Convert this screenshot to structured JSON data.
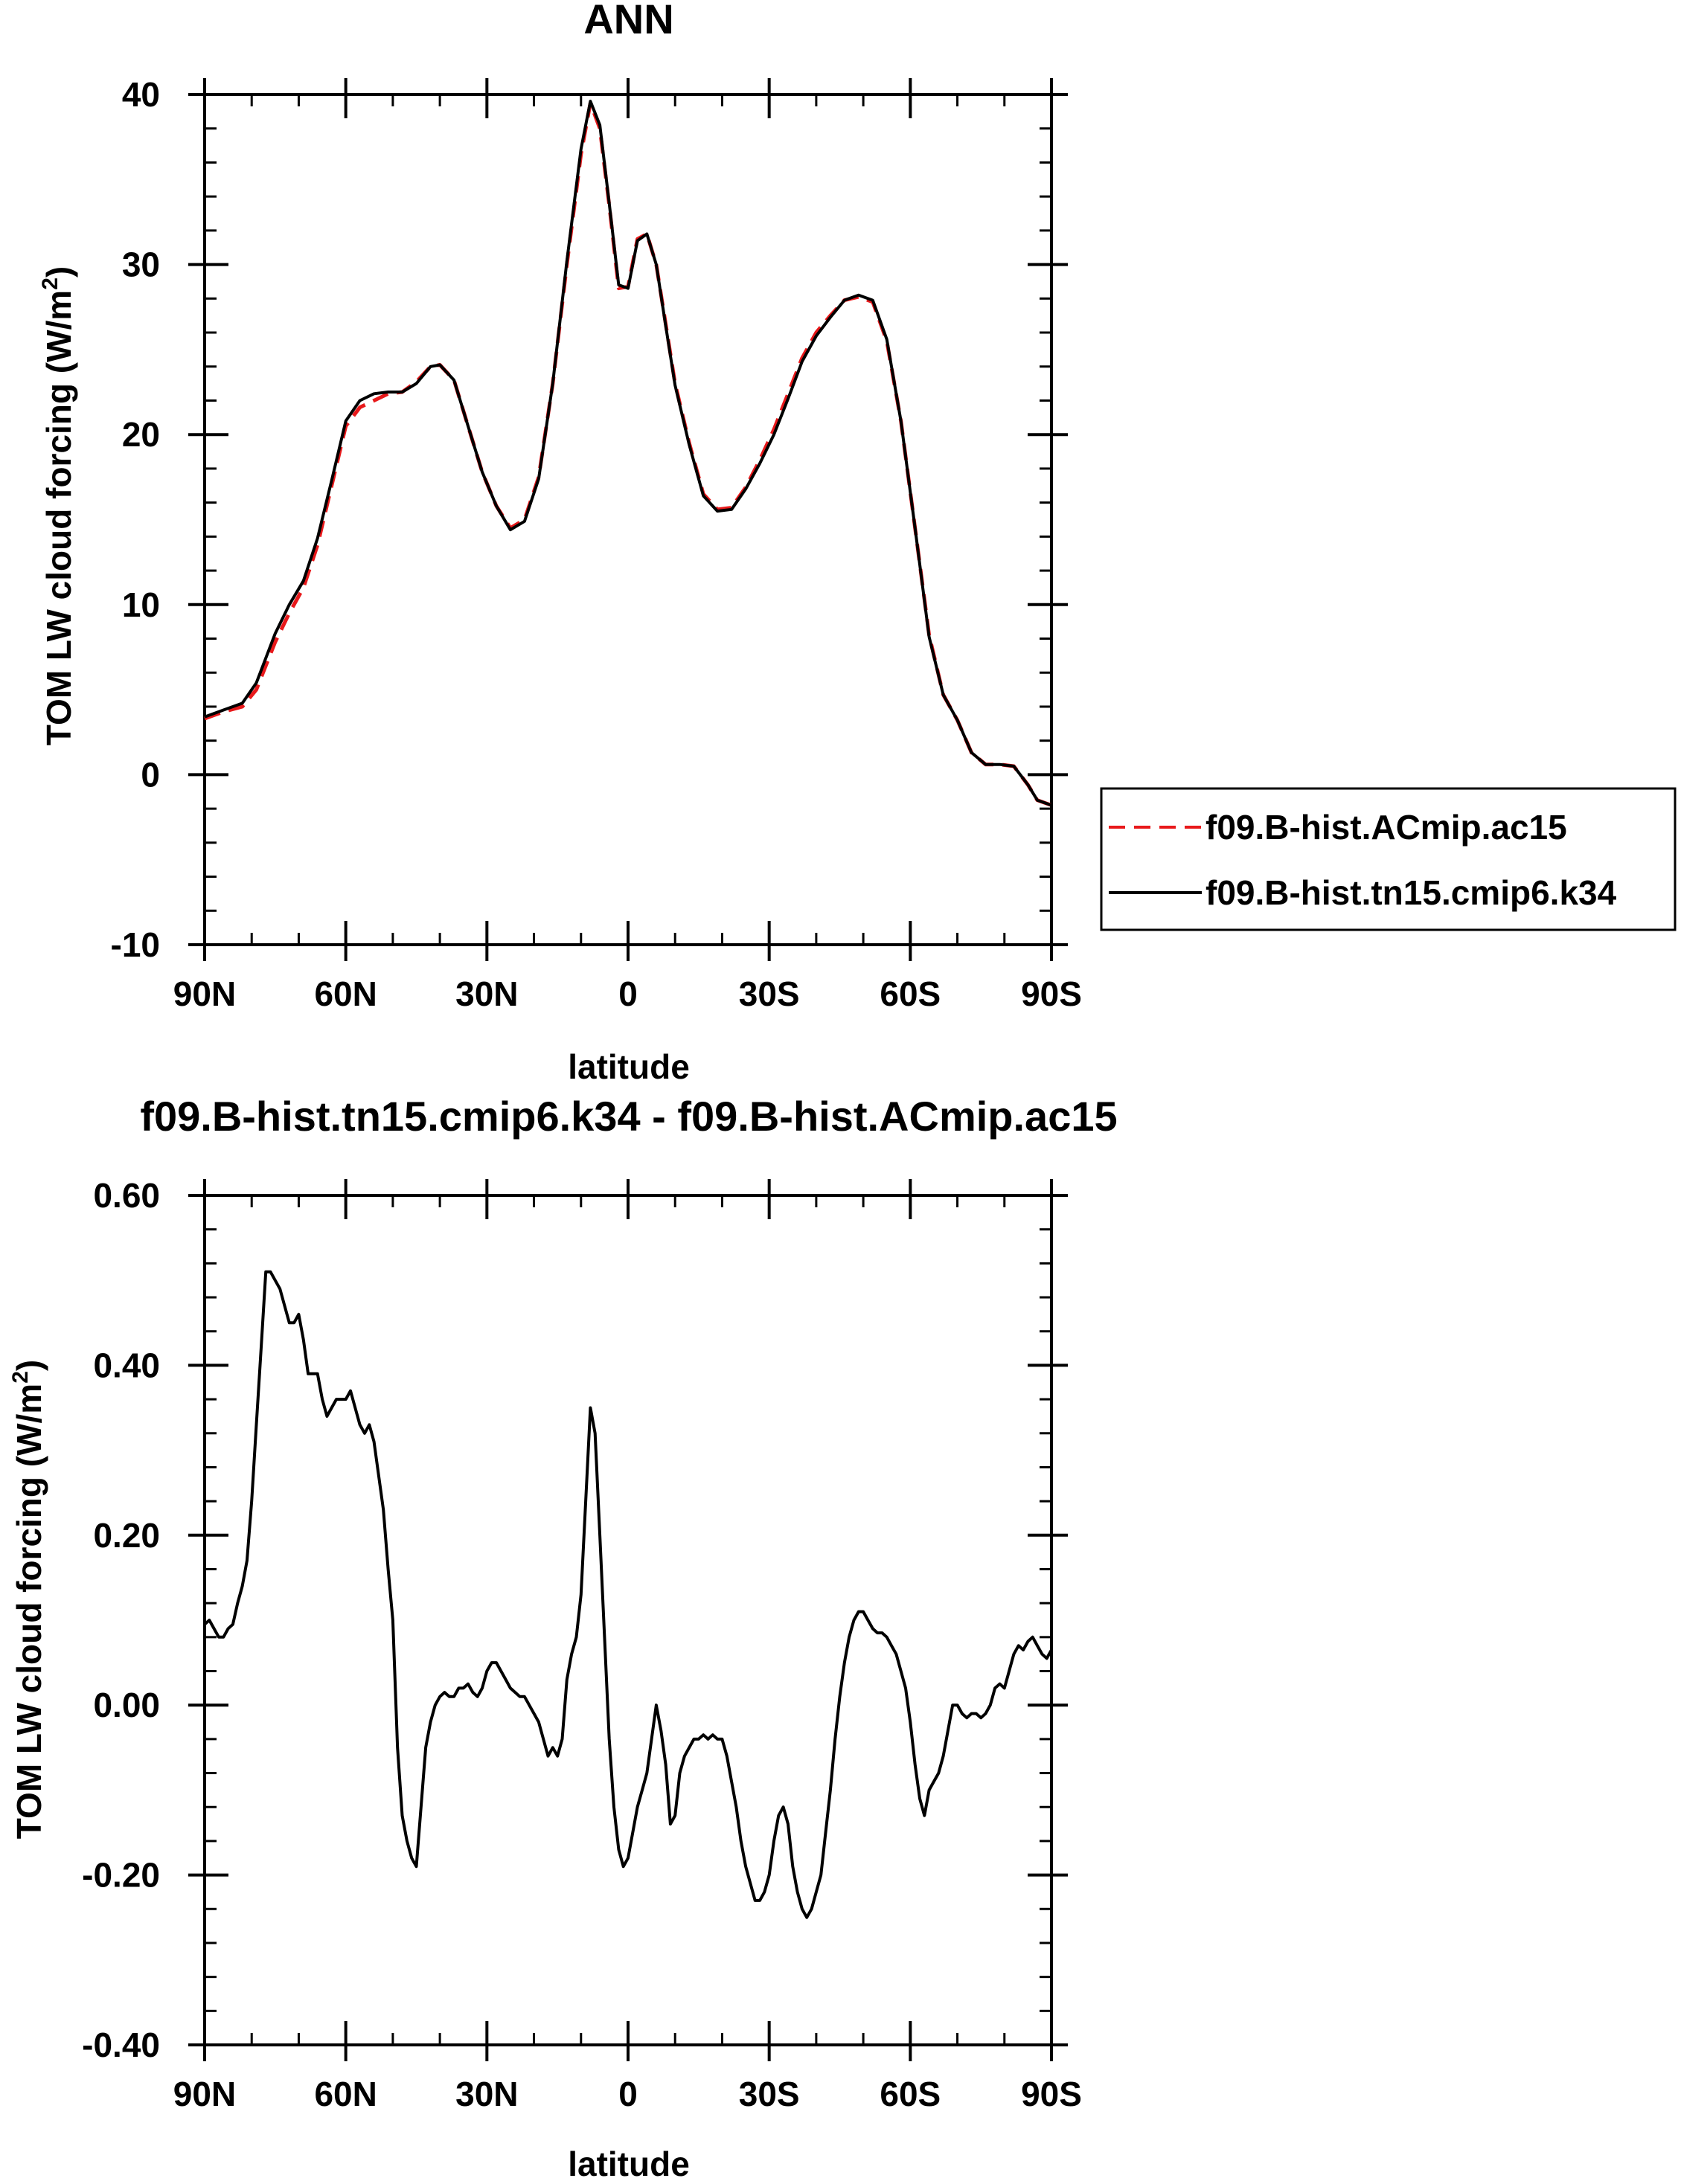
{
  "chart_data": [
    {
      "type": "line",
      "title": "ANN",
      "xlabel": "latitude",
      "ylabel_main": "TOM LW cloud forcing (W/m",
      "ylabel_sup": "2",
      "ylabel_close": ")",
      "xlim": [
        90,
        -90
      ],
      "ylim": [
        -10,
        40
      ],
      "x_ticks": [
        90,
        60,
        30,
        0,
        -30,
        -60,
        -90
      ],
      "x_tick_labels": [
        "90N",
        "60N",
        "30N",
        "0",
        "30S",
        "60S",
        "90S"
      ],
      "y_ticks": [
        -10,
        0,
        10,
        20,
        30,
        40
      ],
      "y_tick_labels": [
        "-10",
        "0",
        "10",
        "20",
        "30",
        "40"
      ],
      "grid": false,
      "legend_position": "right",
      "series": [
        {
          "name": "f09.B-hist.ACmip.ac15",
          "color": "#e8191b",
          "style": "dashed",
          "x": [
            90,
            86,
            82,
            79,
            75,
            72,
            69,
            66,
            63,
            60,
            57,
            54,
            51,
            48,
            45,
            42,
            40,
            37,
            34,
            31,
            28,
            25,
            22,
            19,
            16,
            13,
            10,
            8,
            6,
            4,
            2,
            0,
            -2,
            -4,
            -6,
            -8,
            -10,
            -13,
            -16,
            -19,
            -22,
            -25,
            -28,
            -31,
            -34,
            -37,
            -40,
            -43,
            -46,
            -49,
            -52,
            -55,
            -58,
            -61,
            -64,
            -67,
            -70,
            -73,
            -76,
            -79,
            -82,
            -85,
            -87,
            -90
          ],
          "y": [
            3.3,
            3.7,
            4.0,
            5.0,
            7.8,
            9.5,
            11.0,
            13.5,
            17.0,
            20.5,
            21.6,
            22.0,
            22.4,
            22.5,
            23.1,
            24.0,
            24.1,
            23.2,
            20.5,
            17.8,
            15.8,
            14.5,
            15.0,
            17.5,
            23.0,
            30.0,
            36.5,
            39.5,
            38.0,
            33.5,
            28.6,
            28.7,
            31.5,
            31.8,
            30.0,
            26.5,
            23.0,
            19.5,
            16.5,
            15.6,
            15.7,
            16.9,
            18.5,
            20.3,
            22.4,
            24.5,
            26.0,
            27.0,
            27.9,
            28.1,
            27.8,
            25.5,
            20.8,
            14.5,
            8.2,
            4.7,
            3.2,
            1.3,
            0.6,
            0.6,
            0.5,
            -0.6,
            -1.5,
            -1.8
          ]
        },
        {
          "name": "f09.B-hist.tn15.cmip6.k34",
          "color": "#000000",
          "style": "solid",
          "x": [
            90,
            86,
            82,
            79,
            75,
            72,
            69,
            66,
            63,
            60,
            57,
            54,
            51,
            48,
            45,
            42,
            40,
            37,
            34,
            31,
            28,
            25,
            22,
            19,
            16,
            13,
            10,
            8,
            6,
            4,
            2,
            0,
            -2,
            -4,
            -6,
            -8,
            -10,
            -13,
            -16,
            -19,
            -22,
            -25,
            -28,
            -31,
            -34,
            -37,
            -40,
            -43,
            -46,
            -49,
            -52,
            -55,
            -58,
            -61,
            -64,
            -67,
            -70,
            -73,
            -76,
            -79,
            -82,
            -85,
            -87,
            -90
          ],
          "y": [
            3.4,
            3.8,
            4.2,
            5.4,
            8.3,
            10.0,
            11.4,
            13.9,
            17.3,
            20.8,
            22.0,
            22.4,
            22.5,
            22.5,
            23.0,
            24.0,
            24.1,
            23.2,
            20.5,
            17.8,
            15.8,
            14.4,
            14.9,
            17.4,
            23.0,
            30.2,
            36.8,
            39.6,
            38.2,
            33.6,
            28.8,
            28.6,
            31.4,
            31.8,
            30.0,
            26.4,
            22.9,
            19.4,
            16.4,
            15.5,
            15.6,
            16.8,
            18.3,
            20.0,
            22.1,
            24.3,
            25.8,
            26.9,
            27.9,
            28.2,
            27.9,
            25.6,
            20.8,
            14.5,
            8.1,
            4.7,
            3.2,
            1.3,
            0.6,
            0.6,
            0.5,
            -0.6,
            -1.5,
            -1.8
          ]
        }
      ]
    },
    {
      "type": "line",
      "title": "f09.B-hist.tn15.cmip6.k34 - f09.B-hist.ACmip.ac15",
      "xlabel": "latitude",
      "ylabel_main": "TOM LW cloud forcing (W/m",
      "ylabel_sup": "2",
      "ylabel_close": ")",
      "xlim": [
        90,
        -90
      ],
      "ylim": [
        -0.4,
        0.6
      ],
      "x_ticks": [
        90,
        60,
        30,
        0,
        -30,
        -60,
        -90
      ],
      "x_tick_labels": [
        "90N",
        "60N",
        "30N",
        "0",
        "30S",
        "60S",
        "90S"
      ],
      "y_ticks": [
        -0.4,
        -0.2,
        0.0,
        0.2,
        0.4,
        0.6
      ],
      "y_tick_labels": [
        "-0.40",
        "-0.20",
        "0.00",
        "0.20",
        "0.40",
        "0.60"
      ],
      "grid": false,
      "series": [
        {
          "name": "",
          "color": "#000000",
          "style": "solid",
          "x": [
            90,
            89,
            88,
            87,
            86,
            85,
            84,
            83,
            82,
            81,
            80,
            79,
            78,
            77,
            76,
            75,
            74,
            73,
            72,
            71,
            70,
            69,
            68,
            67,
            66,
            65,
            64,
            63,
            62,
            61,
            60,
            59,
            58,
            57,
            56,
            55,
            54,
            53,
            52,
            51,
            50,
            49,
            48,
            47,
            46,
            45,
            44,
            43,
            42,
            41,
            40,
            39,
            38,
            37,
            36,
            35,
            34,
            33,
            32,
            31,
            30,
            29,
            28,
            27,
            26,
            25,
            24,
            23,
            22,
            21,
            20,
            19,
            18,
            17,
            16,
            15,
            14,
            13,
            12,
            11,
            10,
            9,
            8,
            7,
            6,
            5,
            4,
            3,
            2,
            1,
            0,
            -1,
            -2,
            -3,
            -4,
            -5,
            -6,
            -7,
            -8,
            -9,
            -10,
            -11,
            -12,
            -13,
            -14,
            -15,
            -16,
            -17,
            -18,
            -19,
            -20,
            -21,
            -22,
            -23,
            -24,
            -25,
            -26,
            -27,
            -28,
            -29,
            -30,
            -31,
            -32,
            -33,
            -34,
            -35,
            -36,
            -37,
            -38,
            -39,
            -40,
            -41,
            -42,
            -43,
            -44,
            -45,
            -46,
            -47,
            -48,
            -49,
            -50,
            -51,
            -52,
            -53,
            -54,
            -55,
            -56,
            -57,
            -58,
            -59,
            -60,
            -61,
            -62,
            -63,
            -64,
            -65,
            -66,
            -67,
            -68,
            -69,
            -70,
            -71,
            -72,
            -73,
            -74,
            -75,
            -76,
            -77,
            -78,
            -79,
            -80,
            -81,
            -82,
            -83,
            -84,
            -85,
            -86,
            -87,
            -88,
            -89,
            -90
          ],
          "y": [
            0.095,
            0.1,
            0.09,
            0.08,
            0.08,
            0.09,
            0.095,
            0.12,
            0.14,
            0.17,
            0.24,
            0.33,
            0.42,
            0.51,
            0.51,
            0.5,
            0.49,
            0.47,
            0.45,
            0.45,
            0.46,
            0.43,
            0.39,
            0.39,
            0.39,
            0.36,
            0.34,
            0.35,
            0.36,
            0.36,
            0.36,
            0.37,
            0.35,
            0.33,
            0.32,
            0.33,
            0.31,
            0.27,
            0.23,
            0.16,
            0.1,
            -0.05,
            -0.13,
            -0.16,
            -0.18,
            -0.19,
            -0.12,
            -0.05,
            -0.02,
            0.0,
            0.01,
            0.015,
            0.01,
            0.01,
            0.02,
            0.02,
            0.025,
            0.015,
            0.01,
            0.02,
            0.04,
            0.05,
            0.05,
            0.04,
            0.03,
            0.02,
            0.015,
            0.01,
            0.01,
            0.0,
            -0.01,
            -0.02,
            -0.04,
            -0.06,
            -0.05,
            -0.06,
            -0.04,
            0.03,
            0.06,
            0.08,
            0.13,
            0.24,
            0.35,
            0.32,
            0.2,
            0.08,
            -0.04,
            -0.12,
            -0.17,
            -0.19,
            -0.18,
            -0.15,
            -0.12,
            -0.1,
            -0.08,
            -0.04,
            0.0,
            -0.03,
            -0.07,
            -0.14,
            -0.13,
            -0.08,
            -0.06,
            -0.05,
            -0.04,
            -0.04,
            -0.035,
            -0.04,
            -0.035,
            -0.04,
            -0.04,
            -0.06,
            -0.09,
            -0.12,
            -0.16,
            -0.19,
            -0.21,
            -0.23,
            -0.23,
            -0.22,
            -0.2,
            -0.16,
            -0.13,
            -0.12,
            -0.14,
            -0.19,
            -0.22,
            -0.24,
            -0.25,
            -0.24,
            -0.22,
            -0.2,
            -0.15,
            -0.1,
            -0.04,
            0.01,
            0.05,
            0.08,
            0.1,
            0.11,
            0.11,
            0.1,
            0.09,
            0.085,
            0.085,
            0.08,
            0.07,
            0.06,
            0.04,
            0.02,
            -0.02,
            -0.07,
            -0.11,
            -0.13,
            -0.1,
            -0.09,
            -0.08,
            -0.06,
            -0.03,
            0.0,
            0.0,
            -0.01,
            -0.015,
            -0.01,
            -0.01,
            -0.015,
            -0.01,
            0.0,
            0.02,
            0.025,
            0.02,
            0.04,
            0.06,
            0.07,
            0.065,
            0.075,
            0.08,
            0.07,
            0.06,
            0.055,
            0.065
          ]
        }
      ]
    }
  ]
}
